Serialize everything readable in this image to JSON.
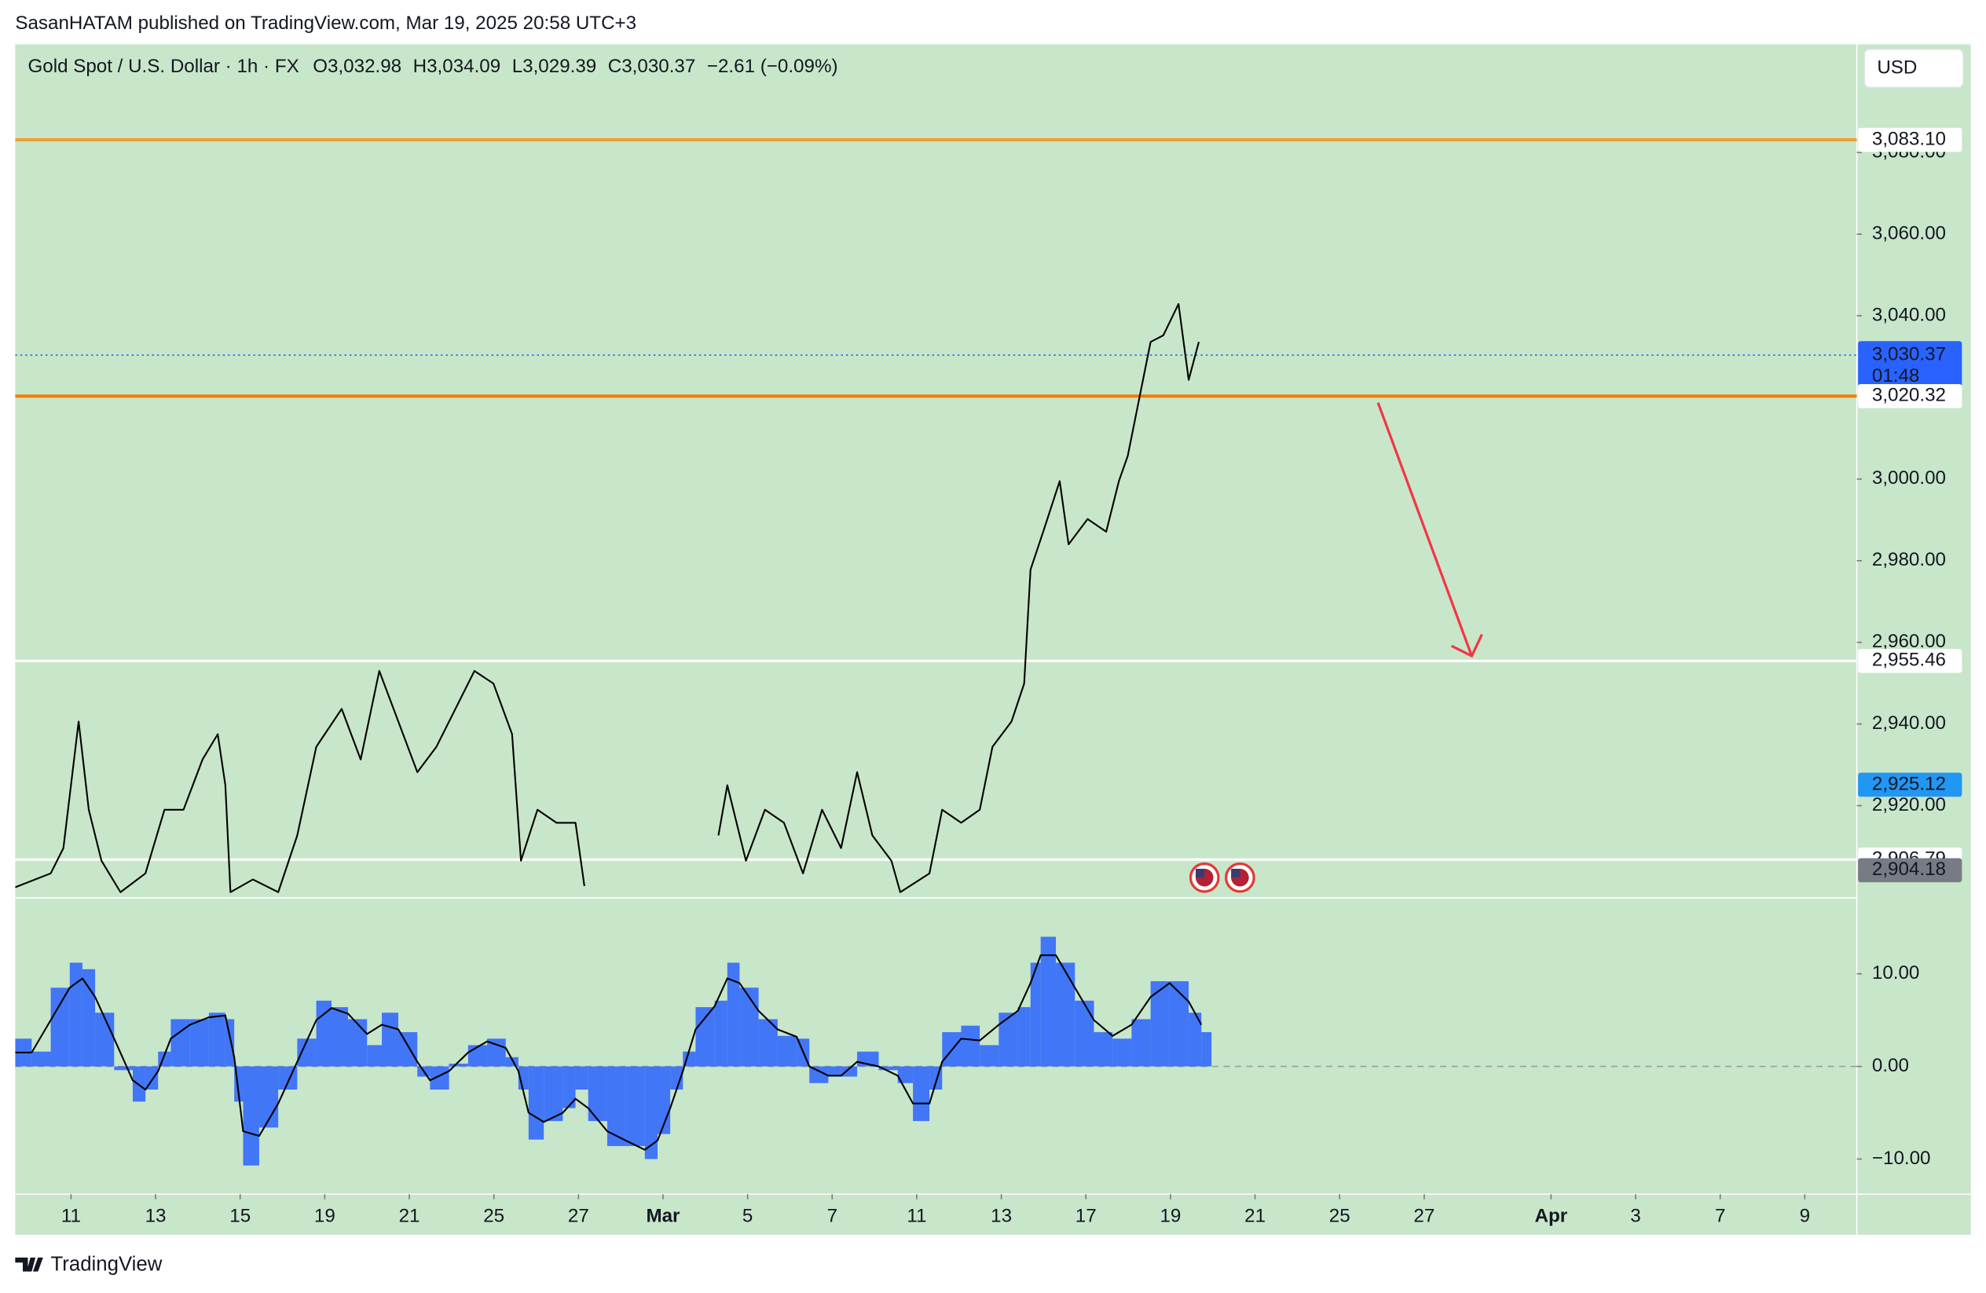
{
  "attribution": "SasanHATAM published on TradingView.com, Mar 19, 2025 20:58 UTC+3",
  "footer": "TradingView",
  "chart_data": [
    {
      "type": "line",
      "title": "Gold Spot / U.S. Dollar · 1h · FX",
      "ohlc": [
        "O3,032.98",
        "H3,034.09",
        "L3,029.39",
        "C3,030.37",
        "−2.61 (−0.09%)"
      ],
      "currency": "USD",
      "color": "#000000",
      "background": "#c8e6c9",
      "grid": false,
      "xlim": [
        -1.32,
        42.23
      ],
      "xticks": [
        {
          "value": 0,
          "label": "11"
        },
        {
          "value": 2,
          "label": "13"
        },
        {
          "value": 4,
          "label": "15"
        },
        {
          "value": 6,
          "label": "19"
        },
        {
          "value": 8,
          "label": "21"
        },
        {
          "value": 10,
          "label": "25"
        },
        {
          "value": 12,
          "label": "27"
        },
        {
          "value": 14,
          "label": "Mar"
        },
        {
          "value": 16,
          "label": "5"
        },
        {
          "value": 18,
          "label": "7"
        },
        {
          "value": 20,
          "label": "11"
        },
        {
          "value": 22,
          "label": "13"
        },
        {
          "value": 24,
          "label": "17"
        },
        {
          "value": 26,
          "label": "19"
        },
        {
          "value": 28,
          "label": "21"
        },
        {
          "value": 30,
          "label": "25"
        },
        {
          "value": 32,
          "label": "27"
        },
        {
          "value": 35,
          "label": "Apr"
        },
        {
          "value": 37,
          "label": "3"
        },
        {
          "value": 39,
          "label": "7"
        },
        {
          "value": 41,
          "label": "9"
        }
      ],
      "ylim": [
        2897.4,
        3106.5
      ],
      "yticks": [
        {
          "value": 3080,
          "label": "3,080.00"
        },
        {
          "value": 3060,
          "label": "3,060.00"
        },
        {
          "value": 3040,
          "label": "3,040.00"
        },
        {
          "value": 3000,
          "label": "3,000.00"
        },
        {
          "value": 2980,
          "label": "2,980.00"
        },
        {
          "value": 2960,
          "label": "2,960.00"
        },
        {
          "value": 2940,
          "label": "2,940.00"
        },
        {
          "value": 2920,
          "label": "2,920.00"
        }
      ],
      "x": [
        -1.32,
        -0.48,
        -0.18,
        0.18,
        0.42,
        0.72,
        1.17,
        1.76,
        2.21,
        2.66,
        3.11,
        3.47,
        3.65,
        3.77,
        4.3,
        4.9,
        5.35,
        5.8,
        6.4,
        6.85,
        7.29,
        7.74,
        8.19,
        8.64,
        9.09,
        9.54,
        9.99,
        10.43,
        10.64,
        11.03,
        11.48,
        11.93,
        12.14,
        13.5,
        15.31,
        15.52,
        15.96,
        16.41,
        16.86,
        17.31,
        17.76,
        18.21,
        18.59,
        18.95,
        19.4,
        19.61,
        20.3,
        20.6,
        21.05,
        21.49,
        21.79,
        22.24,
        22.54,
        22.69,
        22.99,
        23.38,
        23.59,
        24.04,
        24.48,
        24.78,
        24.99,
        25.23,
        25.53,
        25.83,
        26.19,
        26.43,
        26.67
      ],
      "values": [
        2900,
        2903.4,
        2909.6,
        2940.6,
        2919,
        2906.5,
        2898.8,
        2903.4,
        2919,
        2919,
        2931.3,
        2937.5,
        2925,
        2898.8,
        2901.9,
        2898.8,
        2912.7,
        2934.4,
        2943.7,
        2931.3,
        2953,
        2940.6,
        2928.2,
        2934.4,
        2943.7,
        2953,
        2949.9,
        2937.5,
        2906.5,
        2919,
        2915.8,
        2915.8,
        2900.3,
        null,
        2912.7,
        2925,
        2906.5,
        2919,
        2915.8,
        2903.4,
        2919,
        2909.6,
        2928.2,
        2912.7,
        2906.5,
        2898.8,
        2903.4,
        2919,
        2915.8,
        2919,
        2934.4,
        2940.6,
        2949.9,
        2977.8,
        2987.1,
        2999.5,
        2984,
        2990.2,
        2987.1,
        2999.5,
        3005.7,
        3018.1,
        3033.6,
        3035.2,
        3042.9,
        3024.3,
        3033.6
      ],
      "price_markers": [
        {
          "value": 3083.1,
          "label": "3,083.10",
          "bg": "#ffffff",
          "fg": "#131722",
          "line_color": "#f0a030"
        },
        {
          "value": 3030.37,
          "label": "3,030.37",
          "countdown": "01:48",
          "bg": "#2962ff",
          "fg": "#ffffff",
          "line_color": "#2962ff",
          "dotted": true
        },
        {
          "value": 3020.32,
          "label": "3,020.32",
          "bg": "#ffffff",
          "fg": "#131722",
          "line_color": "#f57c00"
        },
        {
          "value": 2955.46,
          "label": "2,955.46",
          "bg": "#ffffff",
          "fg": "#131722",
          "line_color": "#ffffff"
        },
        {
          "value": 2925.12,
          "label": "2,925.12",
          "bg": "#2196f3",
          "fg": "#ffffff"
        },
        {
          "value": 2906.79,
          "label": "2,906.79",
          "bg": "#ffffff",
          "fg": "#131722",
          "line_color": "#ffffff"
        },
        {
          "value": 2904.18,
          "label": "2,904.18",
          "bg": "#787b86",
          "fg": "#ffffff"
        }
      ]
    },
    {
      "type": "histogram",
      "ylim": [
        -13.8,
        18.2
      ],
      "yticks": [
        {
          "value": 10,
          "label": "10.00"
        },
        {
          "value": 0,
          "label": "0.00"
        },
        {
          "value": -10,
          "label": "−10.00"
        }
      ],
      "x": [
        -1.32,
        -0.93,
        -0.48,
        -0.03,
        0.27,
        0.57,
        1.02,
        1.46,
        1.76,
        2.06,
        2.36,
        2.81,
        3.26,
        3.65,
        3.86,
        4.07,
        4.45,
        4.9,
        5.35,
        5.8,
        6.16,
        6.55,
        7.0,
        7.35,
        7.74,
        8.19,
        8.49,
        8.94,
        9.39,
        9.84,
        10.28,
        10.58,
        10.82,
        11.18,
        11.63,
        11.93,
        12.23,
        12.68,
        13.12,
        13.57,
        13.87,
        14.17,
        14.47,
        14.77,
        15.22,
        15.52,
        15.81,
        16.26,
        16.71,
        17.16,
        17.46,
        17.91,
        18.21,
        18.59,
        19.1,
        19.55,
        19.91,
        20.3,
        20.6,
        21.05,
        21.49,
        21.94,
        22.39,
        22.69,
        22.93,
        23.29,
        23.74,
        24.19,
        24.63,
        25.08,
        25.53,
        25.98,
        26.43,
        26.73
      ],
      "histogram": {
        "color": "#2962ff",
        "values": [
          3,
          1.6,
          8.5,
          11.2,
          10.5,
          5.8,
          -0.4,
          -3.8,
          -2.5,
          1.6,
          5.1,
          5.1,
          5.8,
          5.1,
          -3.8,
          -10.7,
          -6.6,
          -2.5,
          3,
          7.1,
          6.4,
          5.1,
          2.3,
          5.8,
          3.7,
          -1.1,
          -2.5,
          0.3,
          2.3,
          3,
          1,
          -2.5,
          -7.9,
          -5.9,
          -4.5,
          -2.5,
          -5.9,
          -8.6,
          -8.6,
          -10,
          -7.3,
          -2.5,
          1.6,
          6.4,
          7.1,
          11.2,
          8.5,
          5.1,
          3.3,
          3,
          -1.8,
          -1.1,
          -1.1,
          1.6,
          -0.4,
          -1.8,
          -5.9,
          -2.5,
          3.7,
          4.4,
          2.3,
          5.8,
          6.4,
          11.2,
          14,
          11.2,
          7.1,
          3.7,
          3,
          5.1,
          9.2,
          9.2,
          5.8,
          3.7
        ]
      },
      "signal": {
        "color": "#000000",
        "values": [
          1.5,
          1.5,
          5,
          8.5,
          9.5,
          7.5,
          3,
          -1.5,
          -2.5,
          -0.5,
          3,
          4.5,
          5.3,
          5.5,
          1,
          -7,
          -7.5,
          -4,
          0.5,
          5,
          6.3,
          5.7,
          3.5,
          4.5,
          4,
          0.5,
          -1.5,
          -0.5,
          1.5,
          2.7,
          2,
          -0.5,
          -5,
          -6,
          -5,
          -3.5,
          -4.5,
          -7,
          -8,
          -9,
          -8,
          -4.5,
          -0.5,
          4,
          6.5,
          9.5,
          9,
          6,
          4,
          3.2,
          0,
          -1,
          -1,
          0.5,
          0,
          -1,
          -4,
          -4,
          0.5,
          3,
          2.8,
          4.5,
          6,
          9,
          12,
          12,
          8.5,
          5,
          3.3,
          4.5,
          7.5,
          9,
          7,
          4.5
        ]
      }
    }
  ]
}
